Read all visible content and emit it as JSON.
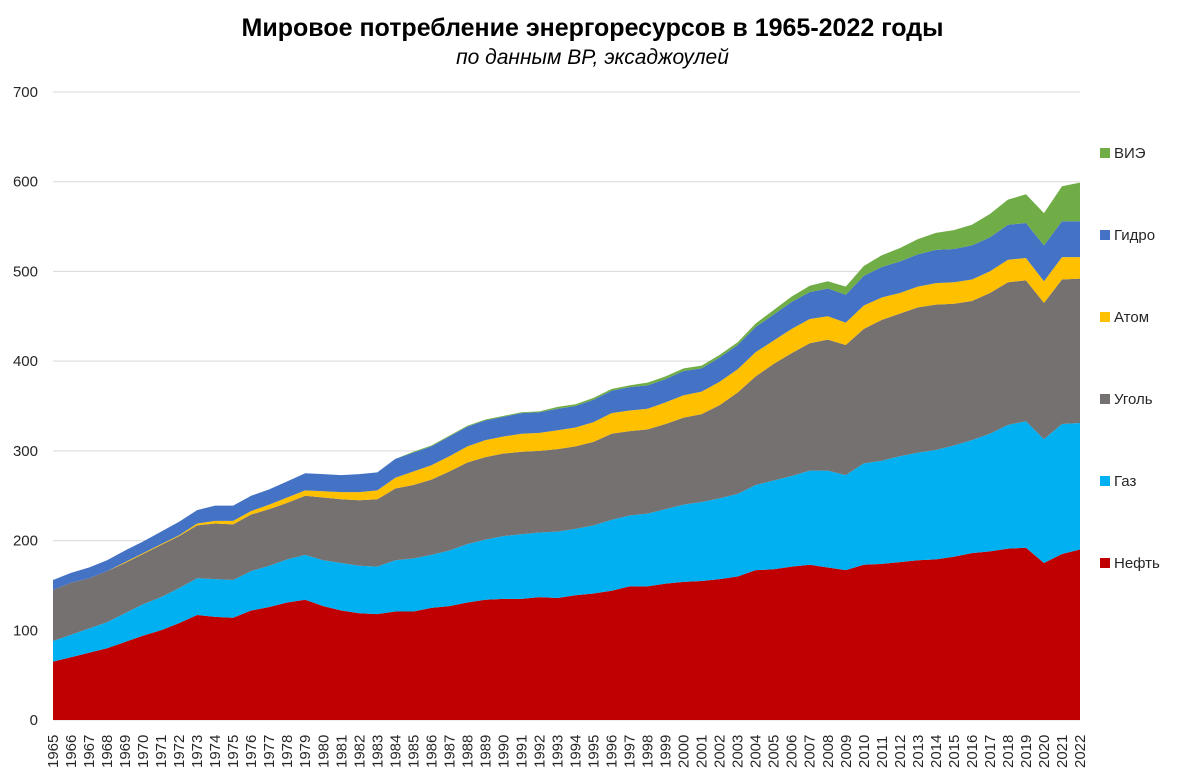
{
  "chart_data": {
    "type": "area",
    "stacked": true,
    "title": "Мировое потребление энергоресурсов в 1965-2022 годы",
    "subtitle": "по данным BP, эксаджоулей",
    "xlabel": "",
    "ylabel": "",
    "ylim": [
      0,
      700
    ],
    "yticks": [
      "0",
      "100",
      "200",
      "300",
      "400",
      "500",
      "600",
      "700"
    ],
    "grid": true,
    "legend_position": "right",
    "x": [
      "1965",
      "1966",
      "1967",
      "1968",
      "1969",
      "1970",
      "1971",
      "1972",
      "1973",
      "1974",
      "1975",
      "1976",
      "1977",
      "1978",
      "1979",
      "1980",
      "1981",
      "1982",
      "1983",
      "1984",
      "1985",
      "1986",
      "1987",
      "1988",
      "1989",
      "1990",
      "1991",
      "1992",
      "1993",
      "1994",
      "1995",
      "1996",
      "1997",
      "1998",
      "1999",
      "2000",
      "2001",
      "2002",
      "2003",
      "2004",
      "2005",
      "2006",
      "2007",
      "2008",
      "2009",
      "2010",
      "2011",
      "2012",
      "2013",
      "2014",
      "2015",
      "2016",
      "2017",
      "2018",
      "2019",
      "2020",
      "2021",
      "2022"
    ],
    "series": [
      {
        "name": "Нефть",
        "color": "#c00000",
        "values": [
          65,
          70,
          75,
          80,
          87,
          94,
          100,
          108,
          117,
          115,
          114,
          122,
          126,
          131,
          134,
          127,
          122,
          119,
          118,
          121,
          121,
          125,
          127,
          131,
          134,
          135,
          135,
          137,
          136,
          139,
          141,
          144,
          149,
          149,
          152,
          154,
          155,
          157,
          160,
          167,
          168,
          171,
          173,
          170,
          167,
          173,
          174,
          176,
          178,
          179,
          182,
          186,
          188,
          191,
          192,
          175,
          185,
          190
        ]
      },
      {
        "name": "Газ",
        "color": "#00b0f0",
        "values": [
          23,
          25,
          27,
          29,
          32,
          35,
          37,
          39,
          41,
          42,
          42,
          44,
          46,
          48,
          50,
          51,
          53,
          53,
          53,
          57,
          59,
          59,
          62,
          65,
          67,
          70,
          72,
          72,
          74,
          74,
          76,
          79,
          79,
          81,
          83,
          86,
          88,
          90,
          92,
          95,
          99,
          101,
          105,
          108,
          106,
          113,
          115,
          118,
          120,
          122,
          124,
          126,
          131,
          138,
          141,
          138,
          145,
          141
        ]
      },
      {
        "name": "Уголь",
        "color": "#767171",
        "values": [
          57,
          58,
          56,
          57,
          56,
          56,
          58,
          58,
          59,
          62,
          62,
          63,
          63,
          63,
          66,
          70,
          71,
          73,
          75,
          80,
          82,
          84,
          88,
          91,
          92,
          92,
          92,
          91,
          92,
          92,
          93,
          96,
          94,
          94,
          95,
          97,
          98,
          104,
          113,
          121,
          130,
          137,
          142,
          146,
          145,
          150,
          157,
          159,
          162,
          162,
          158,
          155,
          157,
          159,
          157,
          152,
          161,
          161
        ]
      },
      {
        "name": "Атом",
        "color": "#ffc000",
        "values": [
          0,
          0,
          0,
          0,
          1,
          1,
          1,
          1,
          2,
          3,
          4,
          4,
          5,
          6,
          6,
          7,
          8,
          9,
          10,
          12,
          15,
          16,
          17,
          18,
          19,
          19,
          20,
          20,
          21,
          21,
          22,
          23,
          23,
          23,
          24,
          25,
          25,
          26,
          26,
          27,
          26,
          27,
          27,
          26,
          25,
          26,
          25,
          23,
          23,
          24,
          24,
          24,
          24,
          25,
          25,
          24,
          25,
          24
        ]
      },
      {
        "name": "Гидро",
        "color": "#4472c4",
        "values": [
          11,
          11,
          12,
          12,
          13,
          13,
          14,
          15,
          15,
          17,
          17,
          17,
          17,
          18,
          19,
          19,
          19,
          20,
          20,
          21,
          21,
          21,
          22,
          22,
          22,
          22,
          23,
          23,
          24,
          24,
          25,
          25,
          26,
          26,
          26,
          27,
          26,
          27,
          27,
          28,
          29,
          30,
          30,
          31,
          31,
          33,
          34,
          35,
          36,
          37,
          37,
          38,
          38,
          39,
          39,
          40,
          40,
          40
        ]
      },
      {
        "name": "ВИЭ",
        "color": "#70ad47",
        "values": [
          0,
          0,
          0,
          0,
          0,
          0,
          0,
          0,
          0,
          0,
          0,
          0,
          0,
          0,
          0,
          0,
          0,
          0,
          0,
          0,
          1,
          1,
          1,
          1,
          1,
          1,
          1,
          1,
          2,
          2,
          2,
          2,
          2,
          3,
          3,
          3,
          3,
          3,
          3,
          4,
          5,
          6,
          7,
          8,
          9,
          11,
          13,
          15,
          17,
          19,
          21,
          23,
          26,
          28,
          32,
          36,
          39,
          43
        ]
      }
    ]
  }
}
